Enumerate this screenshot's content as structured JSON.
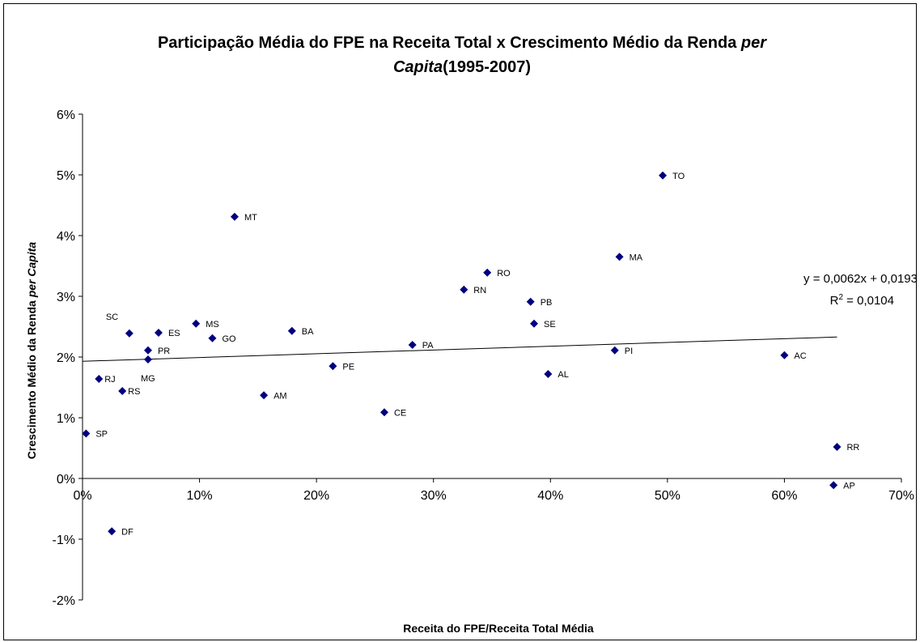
{
  "chart_data": {
    "type": "scatter",
    "title_line1": "Participação Média do FPE na Receita Total x Crescimento Médio da Renda ",
    "title_line1_italic": "per",
    "title_line2_italic": "Capita",
    "title_line2": "(1995-2007)",
    "xlabel": "Receita do FPE/Receita Total Média",
    "ylabel": "Crescimento Médio da Renda ",
    "ylabel_italic": "per Capita",
    "xlim": [
      0,
      0.7
    ],
    "ylim": [
      -0.02,
      0.06
    ],
    "x_ticks": [
      {
        "value": 0.0,
        "label": "0%"
      },
      {
        "value": 0.1,
        "label": "10%"
      },
      {
        "value": 0.2,
        "label": "20%"
      },
      {
        "value": 0.3,
        "label": "30%"
      },
      {
        "value": 0.4,
        "label": "40%"
      },
      {
        "value": 0.5,
        "label": "50%"
      },
      {
        "value": 0.6,
        "label": "60%"
      },
      {
        "value": 0.7,
        "label": "70%"
      }
    ],
    "y_ticks": [
      {
        "value": -0.02,
        "label": "-2%"
      },
      {
        "value": -0.01,
        "label": "-1%"
      },
      {
        "value": 0.0,
        "label": "0%"
      },
      {
        "value": 0.01,
        "label": "1%"
      },
      {
        "value": 0.02,
        "label": "2%"
      },
      {
        "value": 0.03,
        "label": "3%"
      },
      {
        "value": 0.04,
        "label": "4%"
      },
      {
        "value": 0.05,
        "label": "5%"
      },
      {
        "value": 0.06,
        "label": "6%"
      }
    ],
    "marker_color": "#000080",
    "series": [
      {
        "points": [
          {
            "label": "SP",
            "x": 0.003,
            "y": 0.0074
          },
          {
            "label": "RJ",
            "x": 0.014,
            "y": 0.0164
          },
          {
            "label": "RS",
            "x": 0.034,
            "y": 0.0144
          },
          {
            "label": "DF",
            "x": 0.025,
            "y": -0.0087
          },
          {
            "label": "SC",
            "x": 0.04,
            "y": 0.0239
          },
          {
            "label": "PR",
            "x": 0.056,
            "y": 0.0211
          },
          {
            "label": "MG",
            "x": 0.056,
            "y": 0.0196
          },
          {
            "label": "ES",
            "x": 0.065,
            "y": 0.024
          },
          {
            "label": "MS",
            "x": 0.097,
            "y": 0.0255
          },
          {
            "label": "GO",
            "x": 0.111,
            "y": 0.0231
          },
          {
            "label": "MT",
            "x": 0.13,
            "y": 0.0431
          },
          {
            "label": "AM",
            "x": 0.155,
            "y": 0.0137
          },
          {
            "label": "BA",
            "x": 0.179,
            "y": 0.0243
          },
          {
            "label": "PE",
            "x": 0.214,
            "y": 0.0185
          },
          {
            "label": "CE",
            "x": 0.258,
            "y": 0.0109
          },
          {
            "label": "PA",
            "x": 0.282,
            "y": 0.022
          },
          {
            "label": "RN",
            "x": 0.326,
            "y": 0.0311
          },
          {
            "label": "RO",
            "x": 0.346,
            "y": 0.0339
          },
          {
            "label": "PB",
            "x": 0.383,
            "y": 0.0291
          },
          {
            "label": "SE",
            "x": 0.386,
            "y": 0.0255
          },
          {
            "label": "AL",
            "x": 0.398,
            "y": 0.0172
          },
          {
            "label": "PI",
            "x": 0.455,
            "y": 0.0211
          },
          {
            "label": "MA",
            "x": 0.459,
            "y": 0.0365
          },
          {
            "label": "TO",
            "x": 0.496,
            "y": 0.0499
          },
          {
            "label": "AC",
            "x": 0.6,
            "y": 0.0203
          },
          {
            "label": "RR",
            "x": 0.645,
            "y": 0.0052
          },
          {
            "label": "AP",
            "x": 0.642,
            "y": -0.0011
          }
        ]
      }
    ],
    "trendline": {
      "type": "linear",
      "slope": 0.0062,
      "intercept": 0.0193,
      "x_range": [
        0,
        0.645
      ],
      "equation_text": "y = 0,0062x + 0,0193",
      "r2_prefix": "R",
      "r2_sup": "2",
      "r2_value": " = 0,0104"
    },
    "grid": false,
    "legend": "none"
  }
}
